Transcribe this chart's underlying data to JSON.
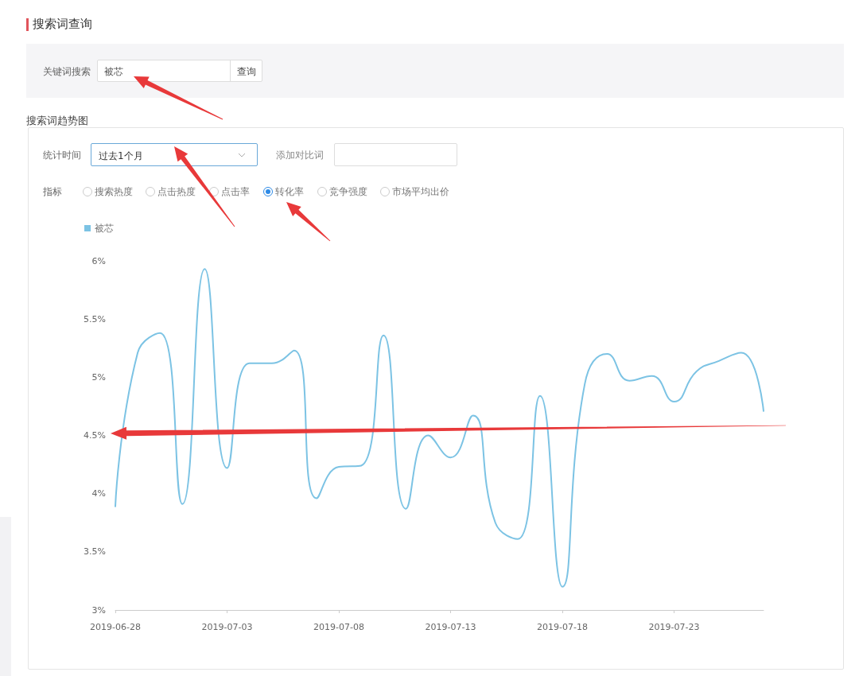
{
  "chart_data": {
    "type": "line",
    "annotations": [
      "搜索词查询",
      "关键词搜索",
      "被芯",
      "查询",
      "搜索词趋势图",
      "统计时间",
      "过去1个月",
      "添加对比词",
      "指标",
      "搜索热度",
      "点击热度",
      "点击率",
      "转化率",
      "竞争强度",
      "市场平均出价"
    ],
    "x": [
      "2019-06-28",
      "2019-06-29",
      "2019-06-30",
      "2019-07-01",
      "2019-07-02",
      "2019-07-03",
      "2019-07-04",
      "2019-07-05",
      "2019-07-06",
      "2019-07-07",
      "2019-07-08",
      "2019-07-09",
      "2019-07-10",
      "2019-07-11",
      "2019-07-12",
      "2019-07-13",
      "2019-07-14",
      "2019-07-15",
      "2019-07-16",
      "2019-07-17",
      "2019-07-18",
      "2019-07-19",
      "2019-07-20",
      "2019-07-21",
      "2019-07-22",
      "2019-07-23",
      "2019-07-24",
      "2019-07-25",
      "2019-07-26",
      "2019-07-27"
    ],
    "series": [
      {
        "name": "被芯",
        "color": "#7cc3e4",
        "values": [
          3.89,
          5.21,
          5.38,
          3.91,
          5.93,
          4.22,
          5.12,
          5.12,
          5.23,
          3.96,
          4.23,
          4.24,
          5.36,
          3.87,
          4.5,
          4.31,
          4.67,
          3.75,
          3.61,
          4.84,
          3.2,
          4.94,
          5.2,
          4.97,
          5.01,
          4.79,
          5.05,
          5.14,
          5.21,
          4.71
        ]
      }
    ],
    "xlim": [
      "2019-06-28",
      "2019-07-27"
    ],
    "xticks": [
      "2019-06-28",
      "2019-07-03",
      "2019-07-08",
      "2019-07-13",
      "2019-07-18",
      "2019-07-23"
    ],
    "ylim": [
      3,
      6
    ],
    "yticks": [
      {
        "value": 3,
        "label": "3%"
      },
      {
        "value": 3.5,
        "label": "3.5%"
      },
      {
        "value": 4,
        "label": "4%"
      },
      {
        "value": 4.5,
        "label": "4.5%"
      },
      {
        "value": 5,
        "label": "5%"
      },
      {
        "value": 5.5,
        "label": "5.5%"
      },
      {
        "value": 6,
        "label": "6%"
      }
    ],
    "grid": false,
    "legend": "top left",
    "marker": "none",
    "line_style": "solid"
  }
}
